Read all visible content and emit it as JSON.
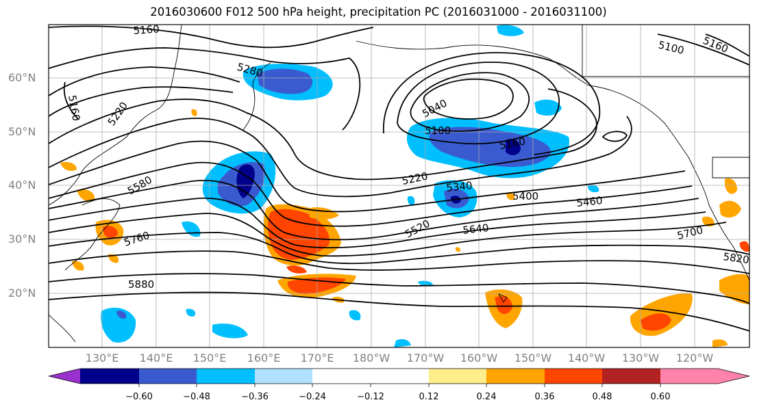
{
  "title": "2016030600 F012 500 hPa height, precipitation PC (2016031000 - 2016031100)",
  "lat_labels": [
    "60°N",
    "50°N",
    "40°N",
    "30°N",
    "20°N"
  ],
  "lon_labels": [
    "130°E",
    "140°E",
    "150°E",
    "160°E",
    "170°E",
    "180°W",
    "170°W",
    "160°W",
    "150°W",
    "140°W",
    "130°W",
    "120°W"
  ],
  "contour_labels": [
    "5160",
    "5160",
    "5100",
    "5160",
    "5220",
    "5280",
    "5040",
    "5100",
    "5160",
    "5220",
    "5340",
    "5400",
    "5460",
    "5580",
    "5520",
    "5640",
    "5700",
    "5760",
    "5820",
    "5880"
  ],
  "colorbar": {
    "tick_labels": [
      "−0.60",
      "−0.48",
      "−0.36",
      "−0.24",
      "−0.12",
      "0.12",
      "0.24",
      "0.36",
      "0.48",
      "0.60"
    ],
    "colors": [
      "#9932cc",
      "#00008b",
      "#3a5bd0",
      "#00bfff",
      "#b0e2ff",
      "#ffffff",
      "#ffec8b",
      "#ffa500",
      "#ff4500",
      "#b22222",
      "#ff82ab"
    ]
  },
  "colors": {
    "blue_light": "#b0e2ff",
    "blue": "#00bfff",
    "blue_dark": "#3a5bd0",
    "navy": "#00008b",
    "yellow": "#ffec8b",
    "orange": "#ffa500",
    "orange_red": "#ff4500",
    "grid": "#aaaaaa"
  }
}
